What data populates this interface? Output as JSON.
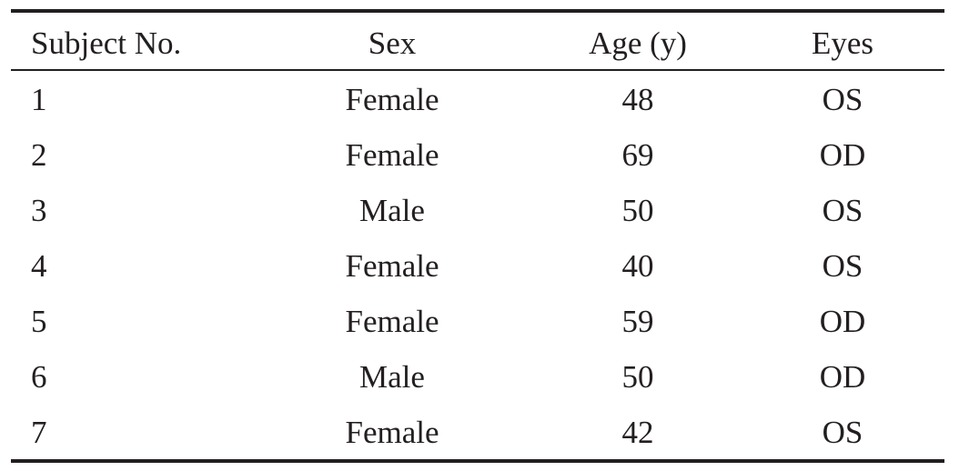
{
  "table": {
    "headers": [
      "Subject No.",
      "Sex",
      "Age (y)",
      "Eyes"
    ],
    "rows": [
      [
        "1",
        "Female",
        "48",
        "OS"
      ],
      [
        "2",
        "Female",
        "69",
        "OD"
      ],
      [
        "3",
        "Male",
        "50",
        "OS"
      ],
      [
        "4",
        "Female",
        "40",
        "OS"
      ],
      [
        "5",
        "Female",
        "59",
        "OD"
      ],
      [
        "6",
        "Male",
        "50",
        "OD"
      ],
      [
        "7",
        "Female",
        "42",
        "OS"
      ]
    ]
  }
}
